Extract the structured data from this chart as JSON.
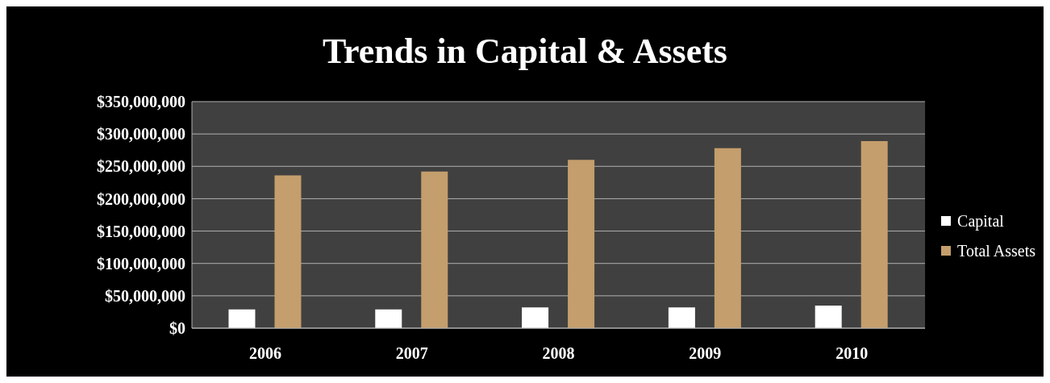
{
  "chart_data": {
    "type": "bar",
    "title": "Trends in Capital & Assets",
    "categories": [
      "2006",
      "2007",
      "2008",
      "2009",
      "2010"
    ],
    "series": [
      {
        "name": "Capital",
        "color": "#ffffff",
        "values": [
          29000000,
          29000000,
          32000000,
          32000000,
          35000000
        ]
      },
      {
        "name": "Total Assets",
        "color": "#c49e6c",
        "values": [
          236000000,
          242000000,
          260000000,
          278000000,
          289000000
        ]
      }
    ],
    "ylim": [
      0,
      350000000
    ],
    "yticks": [
      {
        "value": 0,
        "label": "$0"
      },
      {
        "value": 50000000,
        "label": "$50,000,000"
      },
      {
        "value": 100000000,
        "label": "$100,000,000"
      },
      {
        "value": 150000000,
        "label": "$150,000,000"
      },
      {
        "value": 200000000,
        "label": "$200,000,000"
      },
      {
        "value": 250000000,
        "label": "$250,000,000"
      },
      {
        "value": 300000000,
        "label": "$300,000,000"
      },
      {
        "value": 350000000,
        "label": "$350,000,000"
      }
    ],
    "grid": "y",
    "legend": "right"
  }
}
